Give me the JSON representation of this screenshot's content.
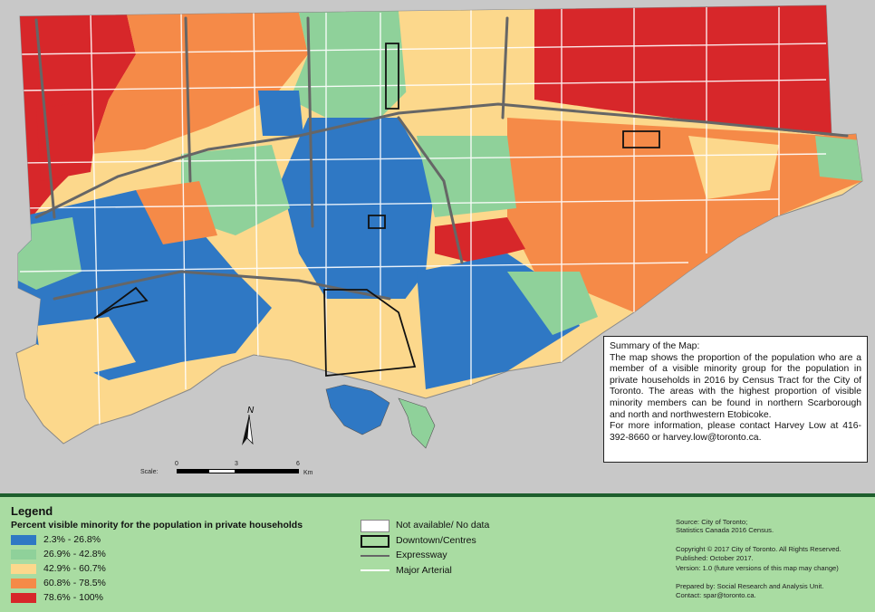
{
  "summary": {
    "title": "Summary of the Map:",
    "body": "The map shows the proportion of the population who are a member of a visible minority group for the population in private households in 2016 by Census Tract for the City of Toronto. The areas with the highest proportion of visible minority members can be found in northern Scarborough and north and northwestern Etobicoke.",
    "contact": "For more information, please contact Harvey Low at 416-392-8660 or harvey.low@toronto.ca."
  },
  "scale": {
    "label": "Scale:",
    "ticks": [
      "0",
      "3",
      "6"
    ],
    "unit": "Km"
  },
  "north_label": "N",
  "legend": {
    "title": "Legend",
    "subtitle": "Percent visible minority for the population in private households",
    "ranges": [
      {
        "label": "2.3% - 26.8%",
        "color": "#2f78c4"
      },
      {
        "label": "26.9% - 42.8%",
        "color": "#8fd19a"
      },
      {
        "label": "42.9% - 60.7%",
        "color": "#fcd88c"
      },
      {
        "label": "60.8% - 78.5%",
        "color": "#f58a48"
      },
      {
        "label": "78.6% - 100%",
        "color": "#d7272a"
      }
    ],
    "symbols": [
      {
        "label": "Not available/ No data",
        "kind": "nodata"
      },
      {
        "label": "Downtown/Centres",
        "kind": "centre"
      },
      {
        "label": "Expressway",
        "kind": "expressway"
      },
      {
        "label": "Major Arterial",
        "kind": "arterial"
      }
    ]
  },
  "credits": {
    "source_1": "Source: City of Toronto;",
    "source_2": "Statistics Canada 2016 Census.",
    "copyright": "Copyright © 2017 City of Toronto. All Rights Reserved.",
    "published": "Published: October 2017.",
    "version": "Version: 1.0 (future versions of this map may change)",
    "prepared": "Prepared by: Social Research and Analysis Unit.",
    "contact": "Contact: spar@toronto.ca."
  },
  "colors": {
    "background": "#c8c8c8",
    "lake": "#ffffff",
    "legend_panel": "#a9dca2",
    "divider": "#1e5f2d",
    "expressway": "#666666",
    "arterial": "#ffffff",
    "centre_outline": "#111111"
  }
}
